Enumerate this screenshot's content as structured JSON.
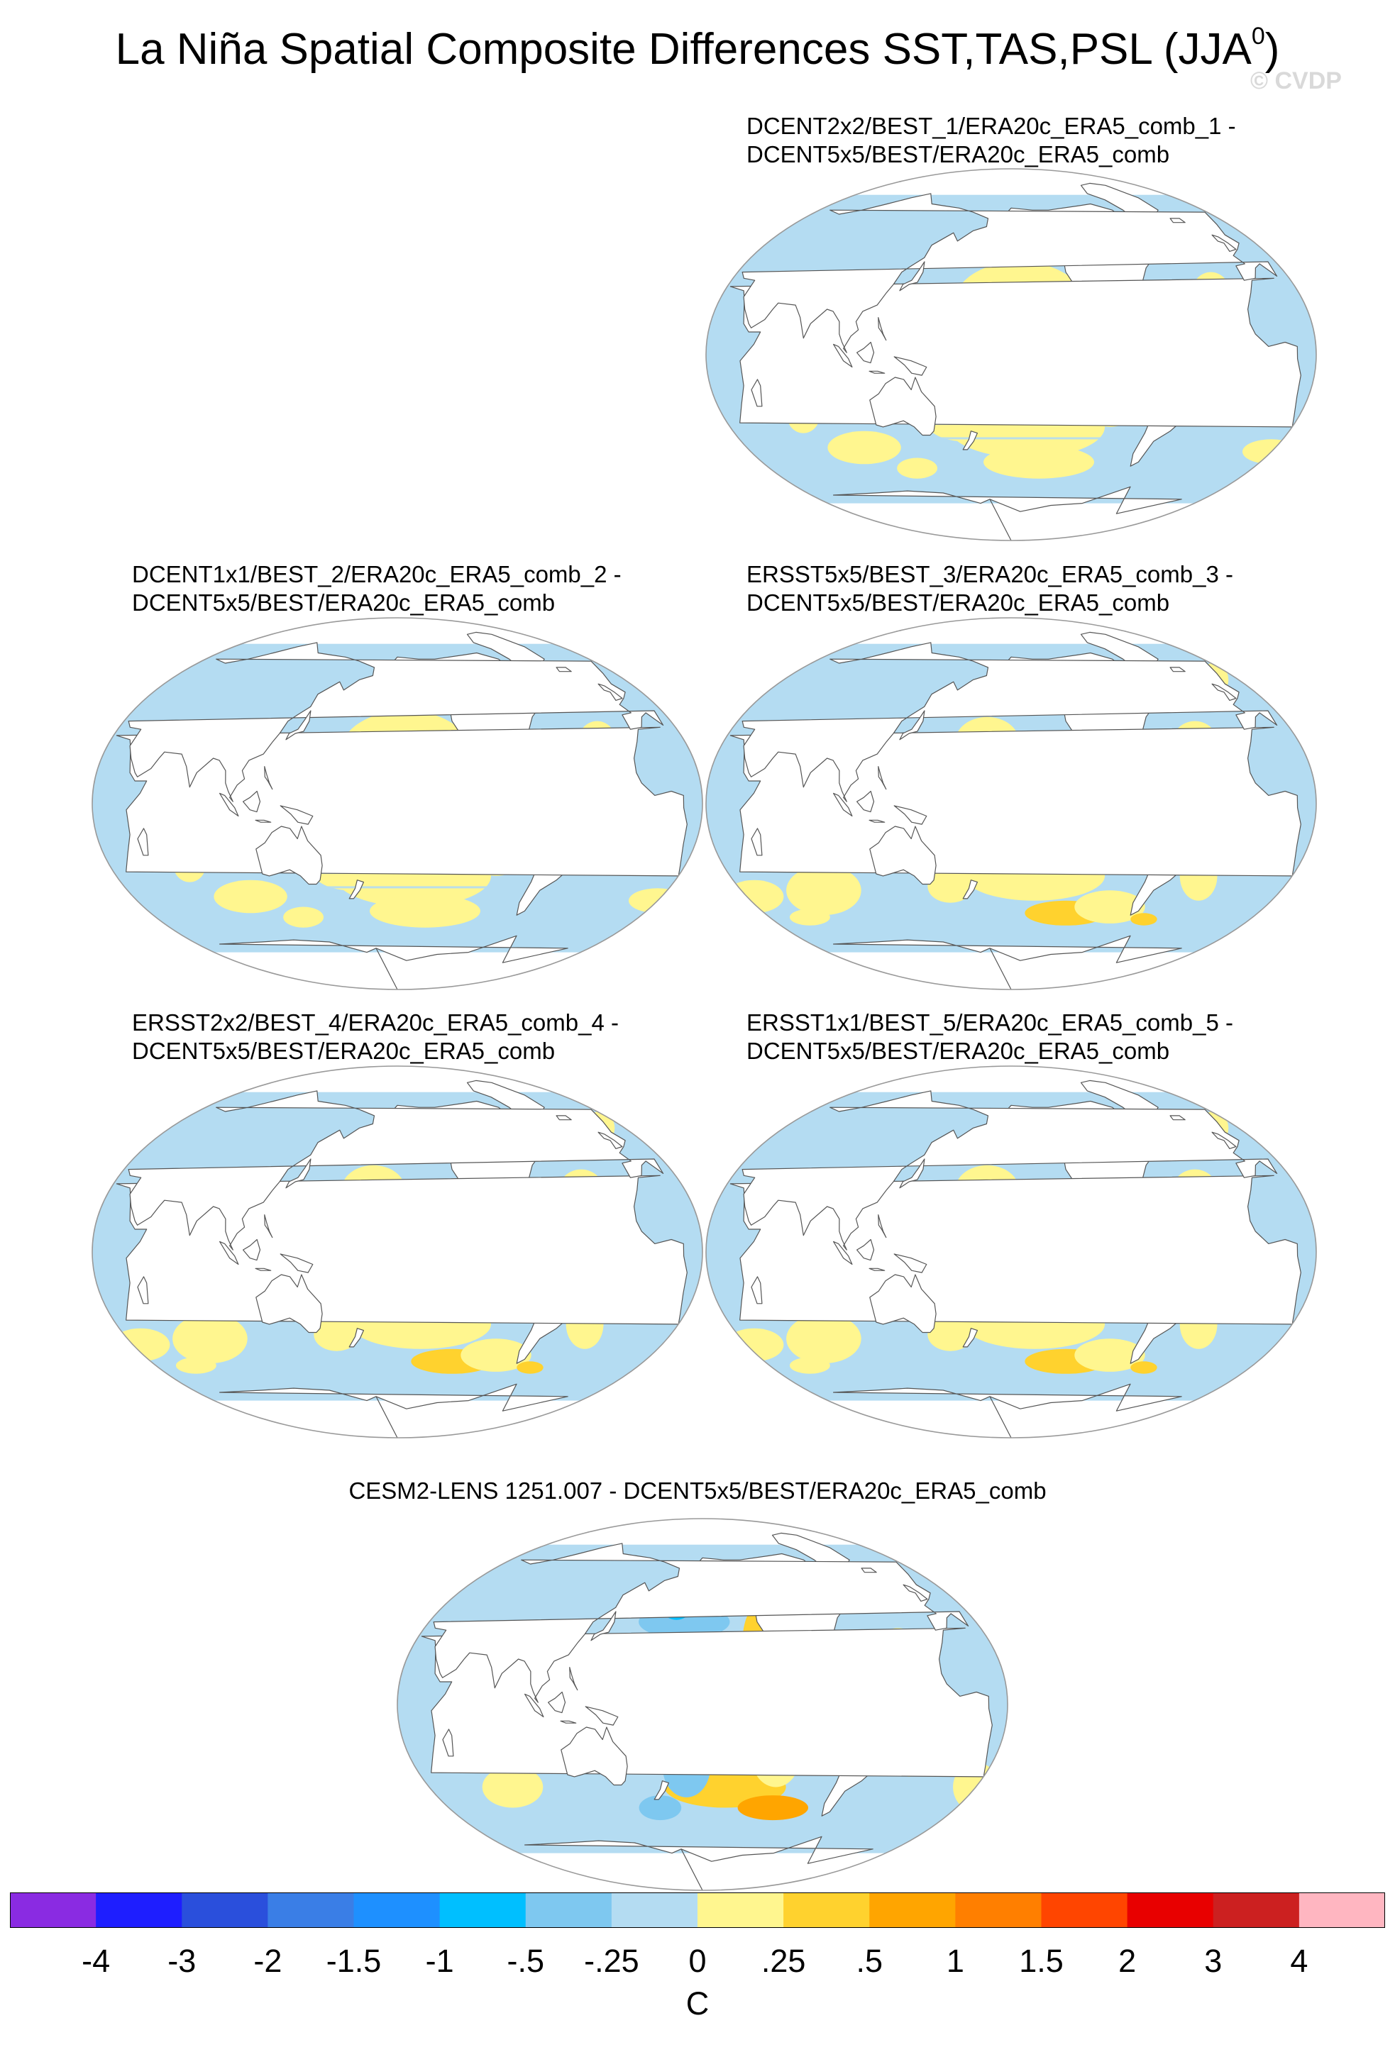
{
  "title": {
    "main": "La Niña Spatial Composite Differences SST,TAS,PSL (JJA",
    "superscript": "0",
    "close": ")"
  },
  "watermark": "© CVDP",
  "panels": [
    {
      "id": "p1",
      "title_line1": "DCENT2x2/BEST_1/ERA20c_ERA5_comb_1 -",
      "title_line2": "DCENT5x5/BEST/ERA20c_ERA5_comb",
      "pattern": "dcent"
    },
    {
      "id": "p2",
      "title_line1": "DCENT1x1/BEST_2/ERA20c_ERA5_comb_2 -",
      "title_line2": "DCENT5x5/BEST/ERA20c_ERA5_comb",
      "pattern": "dcent"
    },
    {
      "id": "p3",
      "title_line1": "ERSST5x5/BEST_3/ERA20c_ERA5_comb_3 -",
      "title_line2": "DCENT5x5/BEST/ERA20c_ERA5_comb",
      "pattern": "ersst"
    },
    {
      "id": "p4",
      "title_line1": "ERSST2x2/BEST_4/ERA20c_ERA5_comb_4 -",
      "title_line2": "DCENT5x5/BEST/ERA20c_ERA5_comb",
      "pattern": "ersst"
    },
    {
      "id": "p5",
      "title_line1": "ERSST1x1/BEST_5/ERA20c_ERA5_comb_5 -",
      "title_line2": "DCENT5x5/BEST/ERA20c_ERA5_comb",
      "pattern": "ersst"
    },
    {
      "id": "p6",
      "title_line1": "CESM2-LENS 1251.007 - DCENT5x5/BEST/ERA20c_ERA5_comb",
      "title_line2": "",
      "pattern": "cesm"
    }
  ],
  "colorbar": {
    "colors": [
      "#8a2be2",
      "#1e1eff",
      "#2a4fdc",
      "#3a7ee6",
      "#1e90ff",
      "#00bfff",
      "#7ec8f0",
      "#b4dcf2",
      "#fff68f",
      "#ffd22e",
      "#ffa500",
      "#ff7f00",
      "#ff4500",
      "#e80000",
      "#cc2020",
      "#ffb6c1"
    ],
    "labels": [
      "-4",
      "-3",
      "-2",
      "-1.5",
      "-1",
      "-.5",
      "-.25",
      "0",
      ".25",
      ".5",
      "1",
      "1.5",
      "2",
      "3",
      "4"
    ],
    "units": "C"
  }
}
